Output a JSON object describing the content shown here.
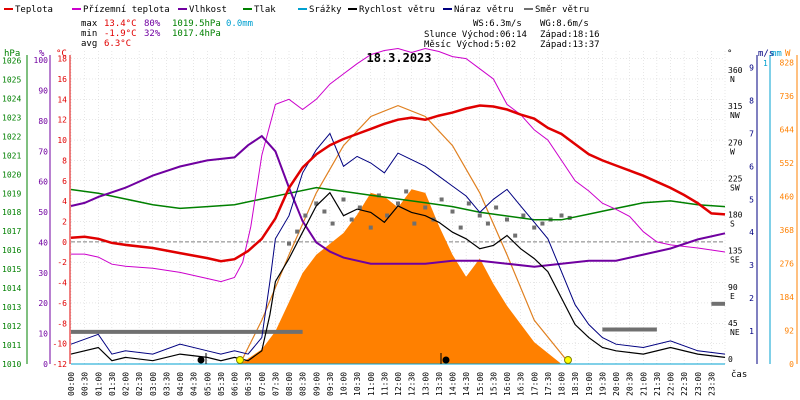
{
  "legend": [
    {
      "label": "Teplota",
      "color": "#e00000"
    },
    {
      "label": "Přízemní teplota",
      "color": "#cc00cc"
    },
    {
      "label": "Vlhkost",
      "color": "#7000a0"
    },
    {
      "label": "Tlak",
      "color": "#008000"
    },
    {
      "label": "Srážky",
      "color": "#00a0d0"
    },
    {
      "label": "Rychlost větru",
      "color": "#000000"
    },
    {
      "label": "Náraz větru",
      "color": "#000080"
    },
    {
      "label": "Směr větru",
      "color": "#707070"
    }
  ],
  "stats": {
    "max": {
      "label": "max",
      "temp": "13.4°C",
      "hum": "80%",
      "press": "1019.5hPa",
      "rain": "0.0mm"
    },
    "min": {
      "label": "min",
      "temp": "-1.9°C",
      "hum": "32%",
      "press": "1017.4hPa"
    },
    "avg": {
      "label": "avg",
      "temp": "6.3°C"
    }
  },
  "wind_info": {
    "ws": "WS:6.3m/s",
    "wg": "WG:8.6m/s"
  },
  "sun": {
    "rise": "Slunce Východ:06:14",
    "set": "Západ:18:16"
  },
  "moon": {
    "rise": "Měsíc  Východ:5:02",
    "set": "Západ:13:37"
  },
  "date": "18.3.2023",
  "axis_units": {
    "hpa": "hPa",
    "pct": "%",
    "degc": "°C",
    "deg": "°",
    "ms": "m/s",
    "mm": "mm",
    "wm2": "W"
  },
  "time_label": "čas",
  "colors": {
    "temp": "#e00000",
    "ground": "#cc00cc",
    "hum": "#7000a0",
    "press": "#008000",
    "rain": "#00a0d0",
    "wind": "#000000",
    "gust": "#000080",
    "dir": "#707070",
    "solar_fill": "#ff8000",
    "solar_line": "#e08020",
    "radiation": "#ff8000"
  },
  "chart_data": {
    "type": "line",
    "title": "18.3.2023",
    "x_ticks": [
      "00:00",
      "00:30",
      "01:00",
      "01:30",
      "02:00",
      "02:30",
      "03:00",
      "03:30",
      "04:00",
      "04:30",
      "05:00",
      "05:30",
      "06:00",
      "06:30",
      "07:00",
      "07:30",
      "08:00",
      "08:30",
      "09:00",
      "09:30",
      "10:00",
      "10:30",
      "11:00",
      "11:30",
      "12:00",
      "12:30",
      "13:00",
      "13:30",
      "14:00",
      "14:30",
      "15:00",
      "15:30",
      "16:00",
      "16:30",
      "17:00",
      "17:30",
      "18:00",
      "18:30",
      "19:00",
      "19:30",
      "20:00",
      "20:30",
      "21:00",
      "21:30",
      "22:00",
      "22:30",
      "23:00",
      "23:30"
    ],
    "axes": {
      "pressure_hpa": {
        "ticks": [
          1010,
          1011,
          1012,
          1013,
          1014,
          1015,
          1016,
          1017,
          1018,
          1019,
          1020,
          1021,
          1022,
          1023,
          1024,
          1025,
          1026
        ],
        "range": [
          1010,
          1026.5
        ]
      },
      "humidity_pct": {
        "ticks": [
          0,
          10,
          20,
          30,
          40,
          50,
          60,
          70,
          80,
          90,
          100
        ],
        "range": [
          0,
          103
        ]
      },
      "temp_c": {
        "ticks": [
          -12,
          -10,
          -8,
          -6,
          -4,
          -2,
          0,
          2,
          4,
          6,
          8,
          10,
          12,
          14,
          16,
          18
        ],
        "range": [
          -12,
          18.75
        ]
      },
      "direction_deg": {
        "ticks": [
          {
            "v": 0,
            "l": "0"
          },
          {
            "v": 45,
            "l": "45 NE"
          },
          {
            "v": 90,
            "l": "90 E"
          },
          {
            "v": 135,
            "l": "135 SE"
          },
          {
            "v": 180,
            "l": "180 S"
          },
          {
            "v": 225,
            "l": "225 SW"
          },
          {
            "v": 270,
            "l": "270 W"
          },
          {
            "v": 315,
            "l": "315 NW"
          },
          {
            "v": 360,
            "l": "360 N"
          }
        ],
        "range": [
          0,
          390
        ]
      },
      "wind_ms": {
        "ticks": [
          1,
          2,
          3,
          4,
          5,
          6,
          7,
          8,
          9
        ],
        "range": [
          0,
          9.5
        ]
      },
      "rain_mm": {
        "ticks": [
          1
        ],
        "range": [
          0,
          1
        ]
      },
      "solar_wm2": {
        "ticks": [
          0,
          92,
          184,
          276,
          368,
          460,
          552,
          644,
          736,
          828
        ],
        "range": [
          0,
          860
        ]
      }
    },
    "series": [
      {
        "name": "Teplota",
        "axis": "temp_c",
        "x": [
          0,
          0.5,
          1,
          1.5,
          2,
          3,
          4,
          5,
          5.5,
          6,
          6.5,
          7,
          7.5,
          8,
          8.5,
          9,
          9.5,
          10,
          10.5,
          11,
          11.5,
          12,
          12.5,
          13,
          13.5,
          14,
          14.5,
          15,
          15.5,
          16,
          16.5,
          17,
          17.5,
          18,
          18.5,
          19,
          19.5,
          20,
          20.5,
          21,
          21.5,
          22,
          22.5,
          23,
          23.5,
          24
        ],
        "y": [
          0.4,
          0.5,
          0.3,
          -0.1,
          -0.3,
          -0.6,
          -1.1,
          -1.6,
          -1.9,
          -1.7,
          -0.9,
          0.3,
          2.3,
          5.3,
          7.3,
          8.6,
          9.5,
          10.1,
          10.6,
          11.1,
          11.6,
          12.0,
          12.2,
          12.0,
          12.4,
          12.7,
          13.1,
          13.4,
          13.3,
          13.0,
          12.5,
          12.1,
          11.2,
          10.6,
          9.6,
          8.6,
          8.0,
          7.5,
          7.0,
          6.5,
          5.9,
          5.3,
          4.6,
          3.8,
          2.8,
          2.7
        ]
      },
      {
        "name": "Přízemní teplota",
        "axis": "temp_c",
        "x": [
          0,
          0.5,
          1,
          1.5,
          2,
          3,
          4,
          5,
          5.5,
          6,
          6.3,
          6.6,
          7,
          7.5,
          8,
          8.5,
          9,
          9.5,
          10,
          10.5,
          11,
          11.5,
          12,
          12.5,
          13,
          13.5,
          14,
          14.5,
          15,
          15.5,
          16,
          16.5,
          17,
          17.5,
          18,
          18.5,
          19,
          19.5,
          20,
          20.5,
          21,
          21.5,
          22,
          23,
          23.5,
          24
        ],
        "y": [
          -1.2,
          -1.2,
          -1.5,
          -2.2,
          -2.4,
          -2.6,
          -3.0,
          -3.6,
          -3.9,
          -3.5,
          -2.0,
          1.5,
          8.5,
          13.5,
          14.0,
          13.0,
          14.0,
          15.5,
          16.5,
          17.5,
          18.4,
          18.8,
          19.0,
          18.6,
          19.0,
          18.7,
          18.2,
          18.0,
          17.0,
          16.0,
          13.5,
          12.5,
          11.0,
          10.0,
          8.0,
          6.0,
          5.0,
          3.8,
          3.2,
          2.5,
          1.0,
          0.0,
          -0.3,
          -0.6,
          -0.8,
          -1.0
        ]
      },
      {
        "name": "Vlhkost",
        "axis": "humidity_pct",
        "x": [
          0,
          0.5,
          1,
          2,
          3,
          4,
          5,
          6,
          6.5,
          7,
          7.5,
          8,
          8.5,
          9,
          9.5,
          10,
          11,
          12,
          13,
          14,
          15,
          16,
          17,
          18,
          19,
          20,
          21,
          22,
          23,
          23.5,
          24
        ],
        "y": [
          52,
          53,
          55,
          58,
          62,
          65,
          67,
          68,
          72,
          75,
          70,
          58,
          47,
          40,
          37,
          35,
          33,
          33,
          33,
          34,
          34,
          33,
          32,
          33,
          34,
          34,
          36,
          38,
          41,
          42,
          43
        ]
      },
      {
        "name": "Tlak",
        "axis": "pressure_hpa",
        "x": [
          0,
          0.5,
          1,
          2,
          3,
          4,
          5,
          6,
          7,
          8,
          9,
          10,
          11,
          12,
          13,
          14,
          15,
          16,
          17,
          18,
          19,
          20,
          21,
          22,
          23,
          24
        ],
        "y": [
          1019.2,
          1019.1,
          1019.0,
          1018.7,
          1018.4,
          1018.2,
          1018.3,
          1018.4,
          1018.7,
          1019.0,
          1019.3,
          1019.1,
          1018.9,
          1018.7,
          1018.5,
          1018.3,
          1018.0,
          1017.8,
          1017.6,
          1017.6,
          1017.9,
          1018.2,
          1018.5,
          1018.6,
          1018.4,
          1018.3
        ]
      },
      {
        "name": "Rychlost větru",
        "axis": "wind_ms",
        "x": [
          0,
          1,
          1.5,
          2,
          3,
          4,
          5,
          5.5,
          6,
          6.5,
          7,
          7.3,
          7.5,
          8,
          8.5,
          9,
          9.5,
          10,
          10.5,
          11,
          11.5,
          12,
          12.5,
          13,
          13.5,
          14,
          14.5,
          15,
          15.5,
          16,
          16.5,
          17,
          17.5,
          18,
          18.5,
          19,
          19.5,
          20,
          21,
          22,
          23,
          24
        ],
        "y": [
          0.3,
          0.5,
          0.1,
          0.2,
          0.1,
          0.3,
          0.2,
          0.1,
          0.2,
          0.1,
          0.4,
          1.5,
          2.5,
          3.2,
          4.0,
          4.8,
          5.2,
          4.5,
          4.7,
          4.6,
          4.3,
          4.8,
          4.6,
          4.5,
          4.3,
          4.0,
          3.8,
          3.5,
          3.6,
          3.9,
          3.5,
          3.2,
          2.8,
          2.0,
          1.2,
          0.8,
          0.5,
          0.4,
          0.3,
          0.5,
          0.3,
          0.2
        ]
      },
      {
        "name": "Náraz větru",
        "axis": "wind_ms",
        "x": [
          0,
          1,
          1.5,
          2,
          3,
          4,
          5,
          5.5,
          6,
          6.5,
          7,
          7.3,
          7.5,
          8,
          8.5,
          9,
          9.5,
          10,
          10.5,
          11,
          11.5,
          12,
          12.5,
          13,
          13.5,
          14,
          14.5,
          15,
          15.5,
          16,
          16.5,
          17,
          17.5,
          18,
          18.5,
          19,
          19.5,
          20,
          21,
          22,
          23,
          24
        ],
        "y": [
          0.6,
          0.9,
          0.3,
          0.4,
          0.3,
          0.6,
          0.4,
          0.3,
          0.4,
          0.3,
          0.8,
          2.5,
          3.8,
          4.5,
          5.8,
          6.5,
          7.0,
          6.0,
          6.3,
          6.1,
          5.8,
          6.4,
          6.2,
          6.0,
          5.7,
          5.4,
          5.1,
          4.6,
          5.0,
          5.3,
          4.8,
          4.3,
          3.8,
          2.8,
          1.8,
          1.2,
          0.8,
          0.6,
          0.5,
          0.7,
          0.4,
          0.3
        ]
      },
      {
        "name": "Směr větru",
        "axis": "direction_deg",
        "segments": [
          {
            "x": [
              0,
              8.5
            ],
            "y": [
              40,
              40
            ]
          },
          {
            "x": [
              19.5,
              21.5
            ],
            "y": [
              43,
              43
            ]
          },
          {
            "x": [
              23.5,
              24
            ],
            "y": [
              75,
              75
            ]
          }
        ],
        "scatter_x": [
          8,
          8.3,
          8.6,
          9,
          9.3,
          9.6,
          10,
          10.3,
          10.6,
          11,
          11.3,
          11.6,
          12,
          12.3,
          12.6,
          13,
          13.3,
          13.6,
          14,
          14.3,
          14.6,
          15,
          15.3,
          15.6,
          16,
          16.3,
          16.6,
          17,
          17.3,
          17.6,
          18,
          18.3
        ],
        "scatter_y": [
          150,
          165,
          185,
          200,
          190,
          175,
          205,
          180,
          195,
          170,
          210,
          185,
          200,
          215,
          175,
          195,
          180,
          205,
          190,
          170,
          200,
          185,
          175,
          195,
          180,
          160,
          185,
          170,
          175,
          180,
          185,
          182
        ]
      },
      {
        "name": "Srážky",
        "axis": "rain_mm",
        "x": [
          0,
          24
        ],
        "y": [
          0,
          0
        ]
      },
      {
        "name": "radiation",
        "axis": "solar_wm2",
        "x": [
          6.2,
          7,
          7.5,
          8,
          8.5,
          9,
          9.5,
          10,
          10.5,
          11,
          11.5,
          12,
          12.5,
          13,
          13.5,
          14,
          14.5,
          15,
          15.5,
          16,
          16.5,
          17,
          17.5,
          18
        ],
        "y": [
          0,
          40,
          90,
          170,
          250,
          300,
          330,
          360,
          410,
          470,
          460,
          430,
          480,
          470,
          380,
          300,
          240,
          290,
          220,
          160,
          110,
          60,
          30,
          0
        ]
      },
      {
        "name": "solar_max",
        "axis": "solar_wm2",
        "x": [
          6.2,
          7,
          8,
          9,
          10,
          11,
          12,
          13,
          14,
          15,
          16,
          17,
          18.3
        ],
        "y": [
          0,
          120,
          300,
          470,
          600,
          680,
          710,
          680,
          600,
          470,
          300,
          120,
          0
        ]
      }
    ]
  }
}
